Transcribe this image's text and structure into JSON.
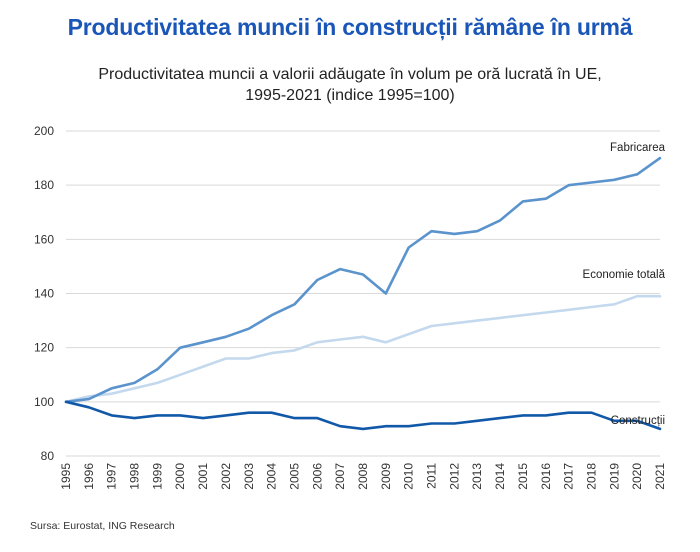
{
  "chart_data": {
    "type": "line",
    "title": "Productivitatea muncii în construcții rămâne în urmă",
    "subtitle_line1": "Productivitatea muncii a valorii adăugate în volum pe oră lucrată în UE,",
    "subtitle_line2": "1995-2021 (indice 1995=100)",
    "source": "Sursa: Eurostat, ING Research",
    "x": [
      "1995",
      "1996",
      "1997",
      "1998",
      "1999",
      "2000",
      "2001",
      "2002",
      "2003",
      "2004",
      "2005",
      "2006",
      "2007",
      "2008",
      "2009",
      "2010",
      "2011",
      "2012",
      "2013",
      "2014",
      "2015",
      "2016",
      "2017",
      "2018",
      "2019",
      "2020",
      "2021"
    ],
    "yticks": [
      80,
      100,
      120,
      140,
      160,
      180,
      200
    ],
    "ylim": [
      80,
      200
    ],
    "grid": true,
    "series": [
      {
        "name": "Fabricarea",
        "color": "#5b93cc",
        "values": [
          100,
          101,
          105,
          107,
          112,
          120,
          122,
          124,
          127,
          132,
          136,
          145,
          149,
          147,
          140,
          157,
          163,
          162,
          163,
          167,
          174,
          175,
          180,
          181,
          182,
          184,
          190
        ]
      },
      {
        "name": "Economie totală",
        "color": "#c4d9ee",
        "values": [
          100,
          102,
          103,
          105,
          107,
          110,
          113,
          116,
          116,
          118,
          119,
          122,
          123,
          124,
          122,
          125,
          128,
          129,
          130,
          131,
          132,
          133,
          134,
          135,
          136,
          139,
          139
        ]
      },
      {
        "name": "Construcții",
        "color": "#1159a8",
        "values": [
          100,
          98,
          95,
          94,
          95,
          95,
          94,
          95,
          96,
          96,
          94,
          94,
          91,
          90,
          91,
          91,
          92,
          92,
          93,
          94,
          95,
          95,
          96,
          96,
          93,
          93,
          90
        ]
      }
    ]
  }
}
